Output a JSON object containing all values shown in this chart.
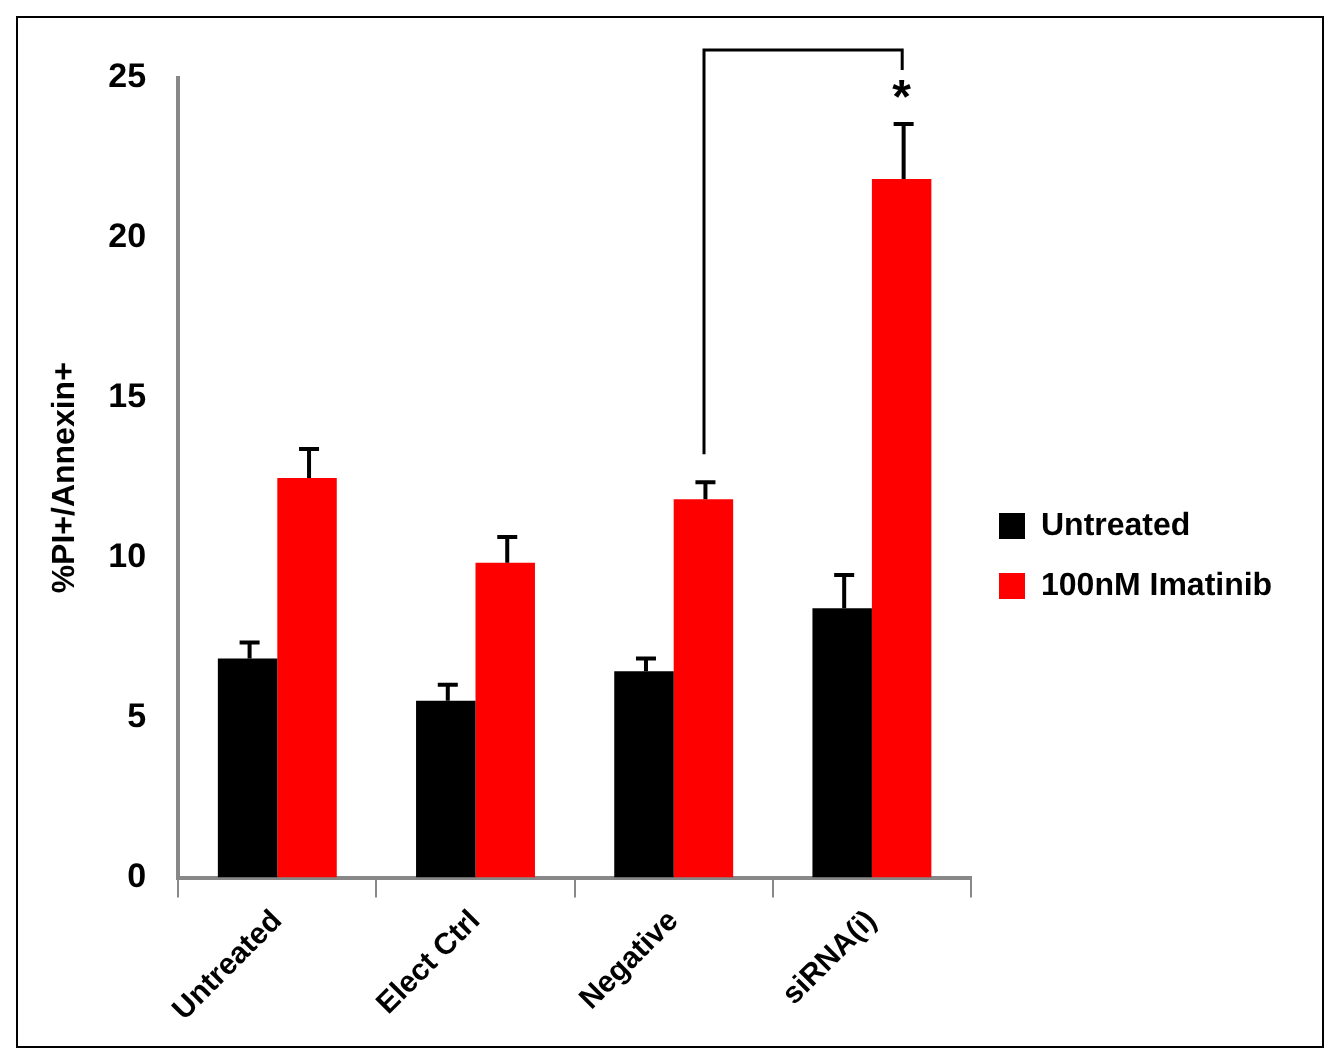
{
  "chart_data": {
    "type": "bar",
    "ylabel": "%PI+/Annexin+",
    "categories": [
      "Untreated",
      "Elect Ctrl",
      "Negative",
      "siRNA(i)"
    ],
    "series": [
      {
        "name": "Untreated",
        "color": "#000000",
        "values": [
          6.85,
          5.53,
          6.45,
          8.42
        ],
        "errors": [
          [
            6.85,
            7.35
          ],
          [
            5.53,
            6.03
          ],
          [
            6.45,
            6.85
          ],
          [
            8.42,
            9.46
          ]
        ]
      },
      {
        "name": "100nM Imatinib",
        "color": "#ff0000",
        "values": [
          12.49,
          9.84,
          11.83,
          21.84
        ],
        "errors": [
          [
            12.49,
            13.4
          ],
          [
            9.84,
            10.65
          ],
          [
            11.83,
            12.36
          ],
          [
            21.84,
            23.56
          ]
        ]
      }
    ],
    "ylim": [
      0,
      25
    ],
    "yticks": [
      0,
      5,
      10,
      15,
      20,
      25
    ],
    "grid": false,
    "legend": "right",
    "annotations": [
      "*"
    ]
  }
}
